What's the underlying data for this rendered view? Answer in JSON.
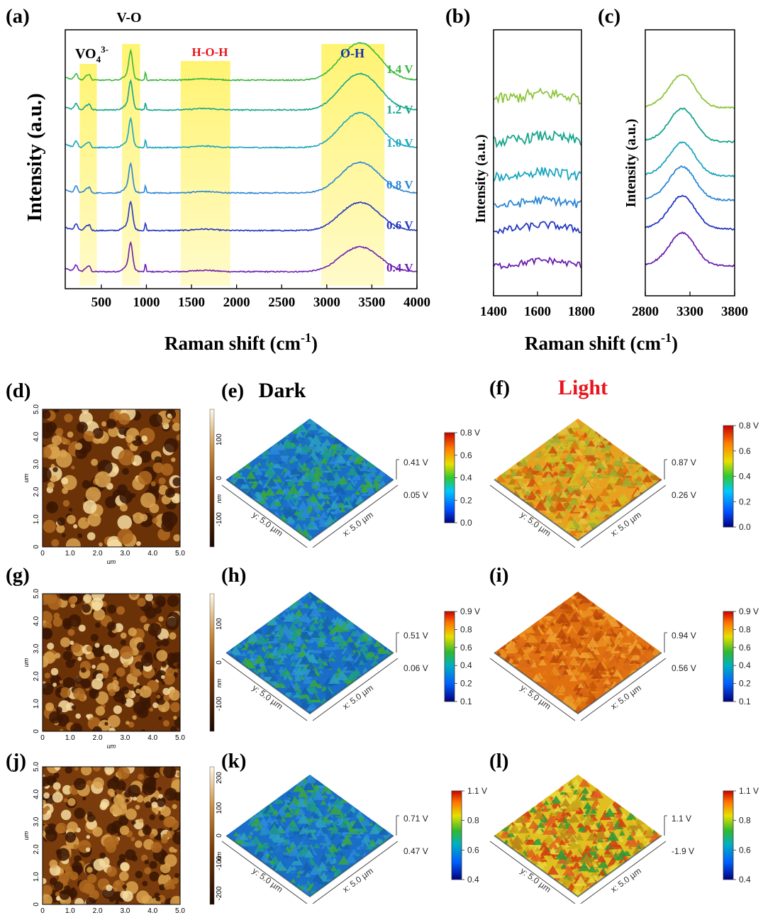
{
  "chart_data": [
    {
      "panel": "(a)",
      "type": "line",
      "ylabel": "Intensity (a.u.)",
      "xlabel": "Raman shift (cm⁻¹)",
      "xlim": [
        100,
        4000
      ],
      "xticks": [
        "500",
        "1000",
        "1500",
        "2000",
        "2500",
        "3000",
        "3500",
        "4000"
      ],
      "bands": [
        {
          "label_main": "VO",
          "label_sub": "4",
          "label_sup": "3-",
          "x": [
            260,
            450
          ],
          "color": "#000000"
        },
        {
          "label": "V-O",
          "x": [
            730,
            930
          ],
          "color": "#000000"
        },
        {
          "label": "H-O-H",
          "x": [
            1380,
            1930
          ],
          "color": "#e8141c"
        },
        {
          "label": "O-H",
          "x": [
            2940,
            3640
          ],
          "color": "#1633a8"
        }
      ],
      "series": [
        {
          "name": "0.4 V",
          "color": "#6a1fb0"
        },
        {
          "name": "0.6 V",
          "color": "#2338c0"
        },
        {
          "name": "0.8 V",
          "color": "#2a86d6"
        },
        {
          "name": "1.0 V",
          "color": "#1aa6bf"
        },
        {
          "name": "1.2 V",
          "color": "#16a58a"
        },
        {
          "name": "1.4 V",
          "color": "#3cb63c"
        }
      ]
    },
    {
      "panel": "(b)",
      "type": "line",
      "ylabel": "Intensity (a.u.)",
      "xlim": [
        1400,
        1800
      ],
      "xticks": [
        "1400",
        "1600",
        "1800"
      ],
      "colors": [
        "#6a1fb0",
        "#2338c0",
        "#2a86d6",
        "#1aa6bf",
        "#16a58a",
        "#8cc63a"
      ]
    },
    {
      "panel": "(c)",
      "type": "line",
      "ylabel": "Intensity (a.u.)",
      "xlim": [
        2800,
        3800
      ],
      "xticks": [
        "2800",
        "3300",
        "3800"
      ],
      "colors": [
        "#6a1fb0",
        "#2338c0",
        "#2a86d6",
        "#1aa6bf",
        "#16a58a",
        "#8cc63a"
      ]
    },
    {
      "panel": "(d)",
      "type": "heatmap",
      "xlabel": "um",
      "ylabel": "um",
      "ticks": [
        "0",
        "1.0",
        "2.0",
        "3.0",
        "4.0",
        "5.0"
      ],
      "colorbar_label": "nm",
      "colorbar_ticks": [
        "100",
        "0",
        "-100"
      ]
    },
    {
      "panel": "(g)",
      "type": "heatmap",
      "xlabel": "um",
      "ylabel": "um",
      "ticks": [
        "0",
        "1.0",
        "2.0",
        "3.0",
        "4.0",
        "5.0"
      ],
      "colorbar_label": "nm",
      "colorbar_ticks": [
        "100",
        "0",
        "-100"
      ]
    },
    {
      "panel": "(j)",
      "type": "heatmap",
      "ylabel": "um",
      "ticks": [
        "0",
        "1.0",
        "2.0",
        "3.0",
        "4.0",
        "5.0"
      ],
      "colorbar_label": "nm",
      "colorbar_ticks": [
        "200",
        "100",
        "0",
        "-100",
        "-200"
      ]
    }
  ],
  "surfaces": [
    {
      "panel": "(e)",
      "title": "Dark",
      "top": "0.41 V",
      "bottom": "0.05 V",
      "y_axis": "y: 5.0 µm",
      "x_axis": "x: 5.0 µm",
      "hue": "cool",
      "cbar": [
        "0.8 V",
        "0.6",
        "0.4",
        "0.2",
        "0.0"
      ]
    },
    {
      "panel": "(f)",
      "title": "Light",
      "top": "0.87 V",
      "bottom": "0.26 V",
      "y_axis": "y: 5.0 µm",
      "x_axis": "x: 5.0 µm",
      "hue": "warm",
      "cbar": [
        "0.8 V",
        "0.6",
        "0.4",
        "0.2",
        "0.0"
      ]
    },
    {
      "panel": "(h)",
      "title": "",
      "top": "0.51 V",
      "bottom": "0.06 V",
      "y_axis": "y: 5.0 µm",
      "x_axis": "x: 5.0 µm",
      "hue": "cool",
      "cbar": [
        "0.9 V",
        "0.8",
        "0.6",
        "0.4",
        "0.2",
        "0.1"
      ]
    },
    {
      "panel": "(i)",
      "title": "",
      "top": "0.94 V",
      "bottom": "0.56 V",
      "y_axis": "y: 5.0 µm",
      "x_axis": "x: 5.0 µm",
      "hue": "hot",
      "cbar": [
        "0.9 V",
        "0.8",
        "0.6",
        "0.4",
        "0.2",
        "0.1"
      ]
    },
    {
      "panel": "(k)",
      "title": "",
      "top": "0.71 V",
      "bottom": "0.47 V",
      "y_axis": "y: 5.0 µm",
      "x_axis": "x: 5.0 µm",
      "hue": "cool",
      "cbar": [
        "1.1 V",
        "0.8",
        "0.6",
        "0.4"
      ]
    },
    {
      "panel": "(l)",
      "title": "",
      "top": "1.1 V",
      "bottom": "-1.9 V",
      "y_axis": "y: 5.0 µm",
      "x_axis": "x: 5.0 µm",
      "hue": "mix",
      "cbar": [
        "1.1 V",
        "0.8",
        "0.6",
        "0.4"
      ]
    }
  ],
  "colors": {
    "band": "#fff36a",
    "axis": "#000000",
    "title_light": "#e8141c"
  }
}
